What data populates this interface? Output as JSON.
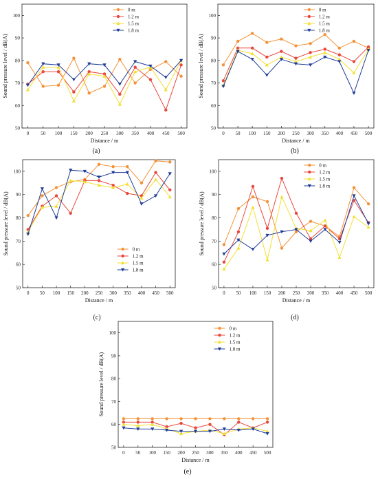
{
  "colors": {
    "s0": "#f39237",
    "s1": "#e8473c",
    "s2": "#f2df32",
    "s3": "#1f3c96"
  },
  "markers": [
    "circle",
    "circle",
    "triangle-up",
    "triangle-down"
  ],
  "chart_data": [
    {
      "type": "line",
      "label": "(a)",
      "xlabel": "Distance / m",
      "ylabel": "Sound pressure level / dB(A)",
      "ylim": [
        50,
        105
      ],
      "yticks": [
        50,
        60,
        70,
        80,
        90,
        100
      ],
      "x": [
        0,
        50,
        100,
        150,
        200,
        250,
        300,
        350,
        400,
        450,
        500
      ],
      "legend_position": "top-center",
      "series": [
        {
          "name": "0 m",
          "values": [
            79,
            68.5,
            69,
            81,
            65.5,
            68.5,
            80.5,
            70,
            76,
            79.5,
            73
          ]
        },
        {
          "name": "1.2 m",
          "values": [
            69.5,
            75,
            75,
            66,
            75,
            74,
            65,
            77,
            71.5,
            58,
            78
          ]
        },
        {
          "name": "1.5 m",
          "values": [
            67,
            77,
            77,
            62,
            74,
            73,
            60.5,
            75,
            77,
            67,
            80
          ]
        },
        {
          "name": "1.8 m",
          "values": [
            69,
            78.5,
            78,
            71.5,
            78.5,
            78,
            69.5,
            79.5,
            77.5,
            72.5,
            80
          ]
        }
      ]
    },
    {
      "type": "line",
      "label": "(b)",
      "xlabel": "Distance / m",
      "ylabel": "Sound pressure level / dB(A)",
      "ylim": [
        50,
        105
      ],
      "yticks": [
        50,
        60,
        70,
        80,
        90,
        100
      ],
      "x": [
        0,
        50,
        100,
        150,
        200,
        250,
        300,
        350,
        400,
        450,
        500
      ],
      "legend_position": "top-left",
      "series": [
        {
          "name": "0 m",
          "values": [
            78,
            88.5,
            92,
            88,
            89.5,
            86.5,
            87.5,
            91.5,
            85.5,
            88.5,
            85.5
          ]
        },
        {
          "name": "1.2 m",
          "values": [
            71,
            85.5,
            85.5,
            81.5,
            84,
            81,
            83.5,
            85,
            82.5,
            79.5,
            86
          ]
        },
        {
          "name": "1.5 m",
          "values": [
            69,
            84.5,
            83,
            78,
            81.5,
            79.5,
            81.5,
            83.5,
            80.5,
            74.5,
            85
          ]
        },
        {
          "name": "1.8 m",
          "values": [
            68.5,
            84,
            80.5,
            73.5,
            80.5,
            78.5,
            78,
            81.5,
            79.5,
            65.5,
            84.5
          ]
        }
      ]
    },
    {
      "type": "line",
      "label": "(c)",
      "xlabel": "Distance / m",
      "ylabel": "Sound pressure level / dB(A)",
      "ylim": [
        50,
        105
      ],
      "yticks": [
        50,
        60,
        70,
        80,
        90,
        100
      ],
      "x": [
        0,
        50,
        100,
        150,
        200,
        250,
        300,
        350,
        400,
        450,
        500
      ],
      "legend_position": "bottom-center",
      "series": [
        {
          "name": "0 m",
          "values": [
            81,
            89.5,
            93,
            95.5,
            96.5,
            103,
            102,
            102,
            95,
            104.5,
            104
          ]
        },
        {
          "name": "1.2 m",
          "values": [
            75,
            85,
            89.5,
            82,
            96,
            96,
            94,
            90.5,
            89.5,
            99.5,
            92
          ]
        },
        {
          "name": "1.5 m",
          "values": [
            74,
            84.5,
            85,
            96,
            95.5,
            94,
            93,
            94.5,
            88.5,
            96.5,
            89
          ]
        },
        {
          "name": "1.8 m",
          "values": [
            73,
            92.5,
            80,
            100.5,
            100,
            97.5,
            99.5,
            99.5,
            86,
            89.5,
            99
          ]
        }
      ]
    },
    {
      "type": "line",
      "label": "(d)",
      "xlabel": "Distance / m",
      "ylabel": "Sound pressure level / dB(A)",
      "ylim": [
        50,
        105
      ],
      "yticks": [
        50,
        60,
        70,
        80,
        90,
        100
      ],
      "x": [
        0,
        50,
        100,
        150,
        200,
        250,
        300,
        350,
        400,
        450,
        500
      ],
      "legend_position": "top-left",
      "series": [
        {
          "name": "0 m",
          "values": [
            68.5,
            84,
            89,
            87,
            67,
            74,
            78.5,
            76.5,
            72,
            93,
            86
          ]
        },
        {
          "name": "1.2 m",
          "values": [
            61,
            74,
            93.5,
            75.5,
            97,
            82,
            71,
            76.5,
            71,
            87.5,
            78
          ]
        },
        {
          "name": "1.5 m",
          "values": [
            58,
            67,
            84.5,
            62,
            89,
            75.5,
            74.5,
            79,
            63,
            80.5,
            76
          ]
        },
        {
          "name": "1.8 m",
          "values": [
            64.5,
            70.5,
            66.5,
            72.5,
            74,
            75,
            70,
            75,
            69.5,
            89.5,
            77.5
          ]
        }
      ]
    },
    {
      "type": "line",
      "label": "(e)",
      "xlabel": "Distance / m",
      "ylabel": "Sound pressure level / dB(A)",
      "ylim": [
        50,
        105
      ],
      "yticks": [
        50,
        60,
        70,
        80,
        90,
        100
      ],
      "x": [
        0,
        50,
        100,
        150,
        200,
        250,
        300,
        350,
        400,
        450,
        500
      ],
      "legend_position": "top-right",
      "series": [
        {
          "name": "0 m",
          "values": [
            62.5,
            62.5,
            62.5,
            62.5,
            62.5,
            62.5,
            62.5,
            62.5,
            62.5,
            62.5,
            62.5
          ]
        },
        {
          "name": "1.2 m",
          "values": [
            61,
            61,
            61,
            59,
            60.5,
            58.5,
            60,
            55.5,
            61,
            58.5,
            61
          ]
        },
        {
          "name": "1.5 m",
          "values": [
            60,
            59.5,
            60,
            58,
            56,
            57,
            57.5,
            56,
            58,
            58.5,
            57
          ]
        },
        {
          "name": "1.8 m",
          "values": [
            58.5,
            58,
            58,
            57.5,
            57,
            57,
            57,
            58,
            57.5,
            58,
            56
          ]
        }
      ]
    }
  ]
}
